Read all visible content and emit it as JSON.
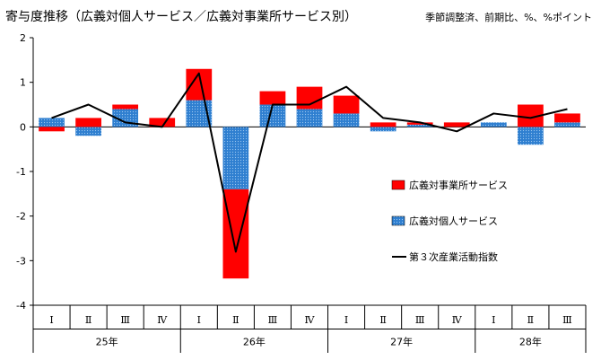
{
  "title": "寄与度推移（広義対個人サービス／広義対事業所サービス別）",
  "note": "季節調整済、前期比、%、%ポイント",
  "chart_data": {
    "type": "bar",
    "stacked": true,
    "title": "寄与度推移（広義対個人サービス／広義対事業所サービス別）",
    "ylim": [
      -4,
      2
    ],
    "yticks": [
      2,
      1,
      0,
      -1,
      -2,
      -3,
      -4
    ],
    "quarters": [
      "Ⅰ",
      "Ⅱ",
      "Ⅲ",
      "Ⅳ",
      "Ⅰ",
      "Ⅱ",
      "Ⅲ",
      "Ⅳ",
      "Ⅰ",
      "Ⅱ",
      "Ⅲ",
      "Ⅳ",
      "Ⅰ",
      "Ⅱ",
      "Ⅲ"
    ],
    "years": [
      {
        "label": "25年",
        "count": 4
      },
      {
        "label": "26年",
        "count": 4
      },
      {
        "label": "27年",
        "count": 4
      },
      {
        "label": "28年",
        "count": 3
      }
    ],
    "series": [
      {
        "name": "広義対個人サービス",
        "kind": "bar",
        "color": "#2f7fd0",
        "values": [
          0.2,
          -0.2,
          0.4,
          0.0,
          0.6,
          -1.4,
          0.5,
          0.4,
          0.3,
          -0.1,
          0.05,
          0.0,
          0.1,
          -0.4,
          0.1
        ]
      },
      {
        "name": "広義対事業所サービス",
        "kind": "bar",
        "color": "#ff0000",
        "values": [
          -0.1,
          0.2,
          0.1,
          0.2,
          0.7,
          -2.0,
          0.3,
          0.5,
          0.4,
          0.1,
          0.05,
          0.1,
          0.0,
          0.5,
          0.2
        ]
      },
      {
        "name": "第３次産業活動指数",
        "kind": "line",
        "color": "#000000",
        "values": [
          0.2,
          0.5,
          0.1,
          0.0,
          1.2,
          -2.8,
          0.5,
          0.5,
          0.9,
          0.2,
          0.1,
          -0.1,
          0.3,
          0.2,
          0.4
        ]
      }
    ],
    "legend": [
      {
        "name": "広義対事業所サービス",
        "swatch": "bar",
        "color": "#ff0000"
      },
      {
        "name": "広義対個人サービス",
        "swatch": "bar-dots",
        "color": "#2f7fd0"
      },
      {
        "name": "第３次産業活動指数",
        "swatch": "line",
        "color": "#000000"
      }
    ],
    "legend_position": "lower-right",
    "grid": false
  }
}
